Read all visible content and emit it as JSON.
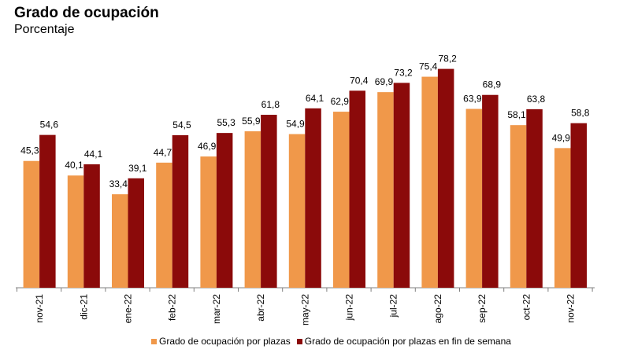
{
  "chart_data": {
    "type": "bar",
    "title": "Grado de ocupación",
    "subtitle": "Porcentaje",
    "categories": [
      "nov-21",
      "dic-21",
      "ene-22",
      "feb-22",
      "mar-22",
      "abr-22",
      "may-22",
      "jun-22",
      "jul-22",
      "ago-22",
      "sep-22",
      "oct-22",
      "nov-22"
    ],
    "series": [
      {
        "name": "Grado de ocupación por plazas",
        "color": "#F0984A",
        "values": [
          45.3,
          40.1,
          33.4,
          44.7,
          46.9,
          55.9,
          54.9,
          62.9,
          69.9,
          75.4,
          63.9,
          58.1,
          49.9
        ],
        "labels": [
          "45,3",
          "40,1",
          "33,4",
          "44,7",
          "46,9",
          "55,9",
          "54,9",
          "62,9",
          "69,9",
          "75,4",
          "63,9",
          "58,1",
          "49,9"
        ]
      },
      {
        "name": "Grado de ocupación por plazas en fin de semana",
        "color": "#8B0A0A",
        "values": [
          54.6,
          44.1,
          39.1,
          54.5,
          55.3,
          61.8,
          64.1,
          70.4,
          73.2,
          78.2,
          68.9,
          63.8,
          58.8
        ],
        "labels": [
          "54,6",
          "44,1",
          "39,1",
          "54,5",
          "55,3",
          "61,8",
          "64,1",
          "70,4",
          "73,2",
          "78,2",
          "68,9",
          "63,8",
          "58,8"
        ]
      }
    ],
    "ylim": [
      0,
      85
    ],
    "grid": false,
    "legend_position": "bottom"
  }
}
